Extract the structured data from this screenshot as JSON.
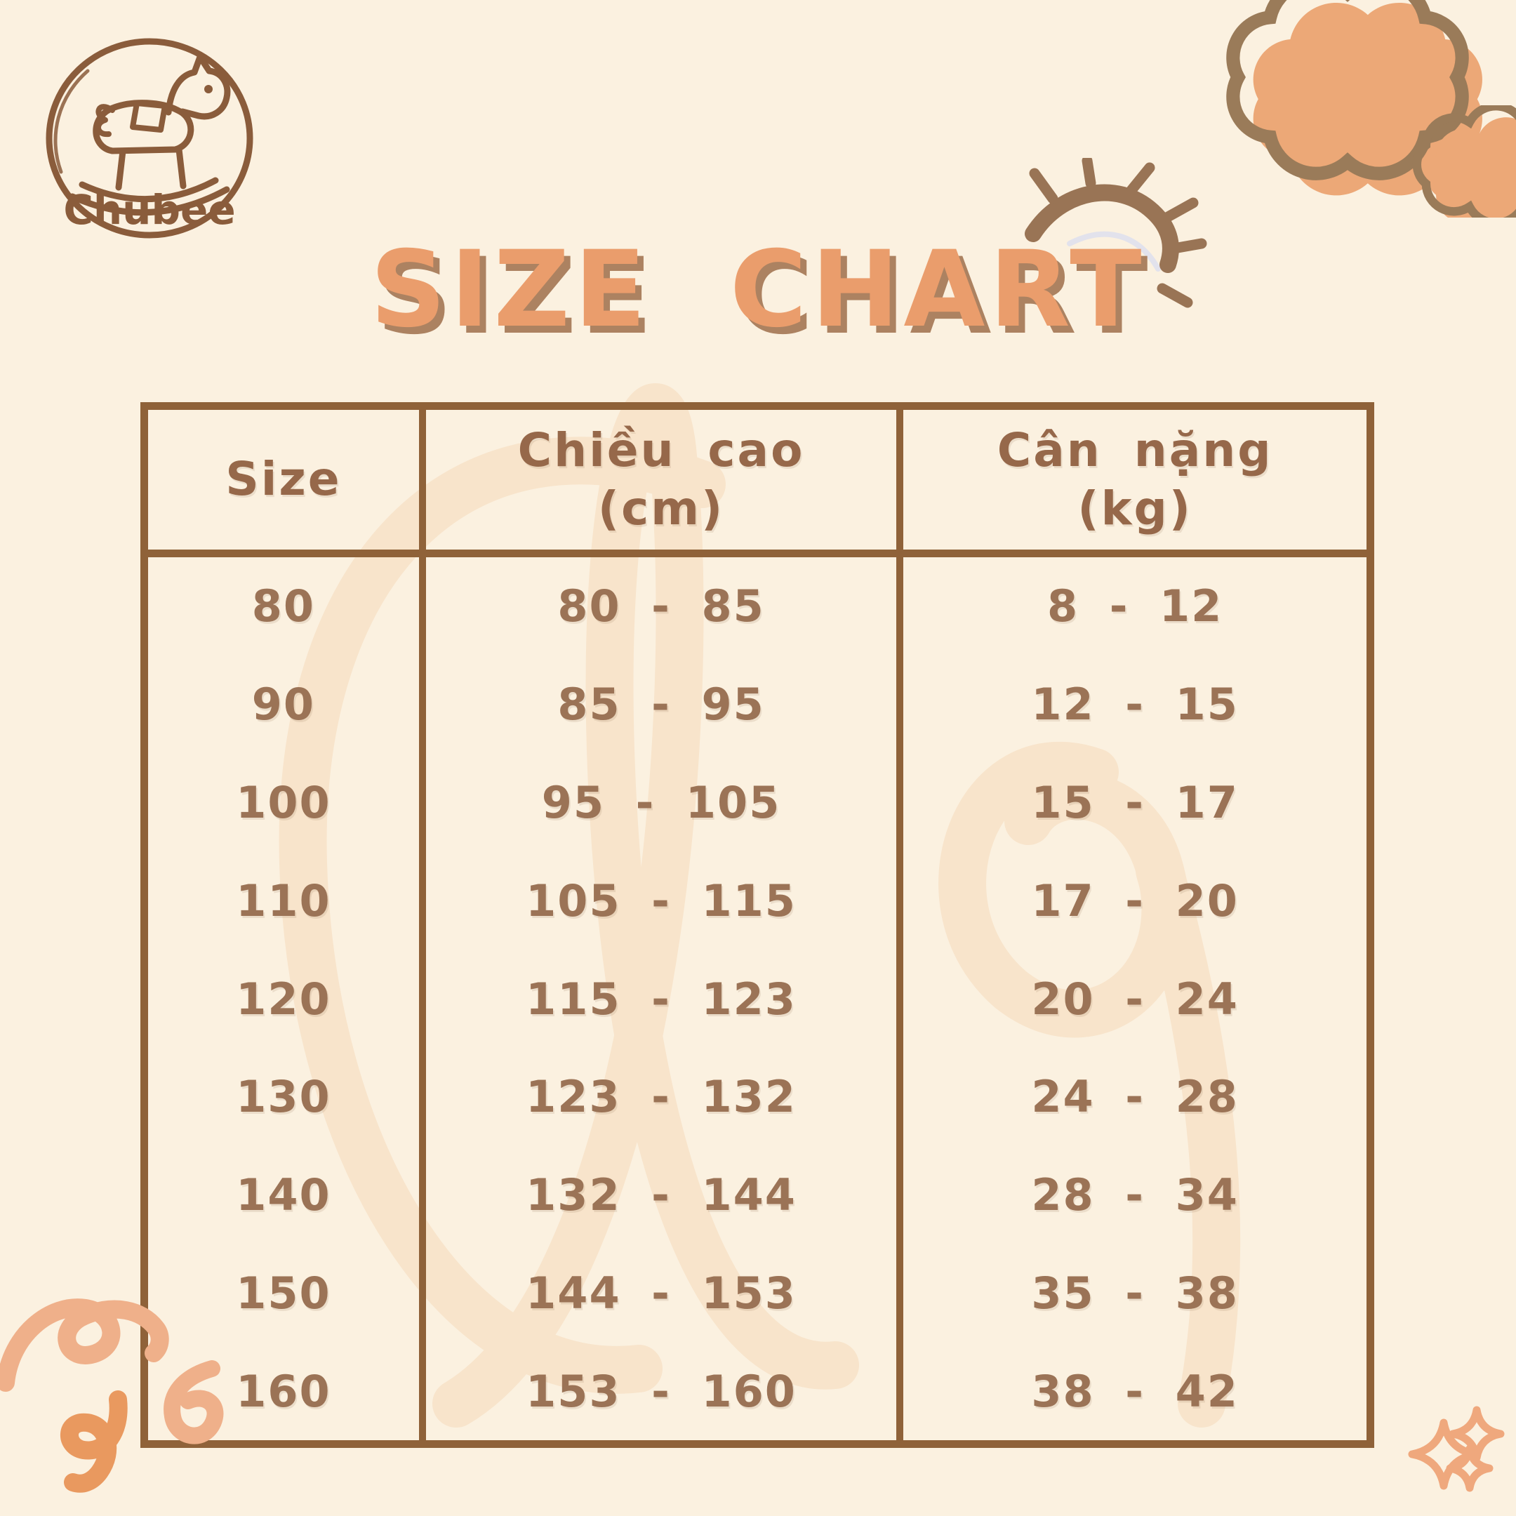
{
  "brand": {
    "name": "Chubee"
  },
  "title": "SIZE CHART",
  "table": {
    "headers": {
      "size": "Size",
      "height_line1": "Chiều cao",
      "height_line2": "(cm)",
      "weight_line1": "Cân nặng",
      "weight_line2": "(kg)"
    },
    "rows": [
      {
        "size": "80",
        "height": "80 - 85",
        "weight": "8 - 12"
      },
      {
        "size": "90",
        "height": "85 - 95",
        "weight": "12 - 15"
      },
      {
        "size": "100",
        "height": "95 - 105",
        "weight": "15 - 17"
      },
      {
        "size": "110",
        "height": "105 - 115",
        "weight": "17 - 20"
      },
      {
        "size": "120",
        "height": "115 - 123",
        "weight": "20 - 24"
      },
      {
        "size": "130",
        "height": "123 - 132",
        "weight": "24 - 28"
      },
      {
        "size": "140",
        "height": "132 - 144",
        "weight": "28 - 34"
      },
      {
        "size": "150",
        "height": "144 - 153",
        "weight": "35 - 38"
      },
      {
        "size": "160",
        "height": "153 - 160",
        "weight": "38 - 42"
      }
    ]
  },
  "icons": {
    "logo": "rocking-horse-icon",
    "decorations": [
      "cloud-icon",
      "sun-icon",
      "squiggle-icon",
      "sparkle-icon"
    ]
  },
  "colors": {
    "background": "#FBF1E0",
    "table_border": "#8F6239",
    "text_brown": "#9B7356",
    "header_brown": "#96684A",
    "title_orange": "#EA9D6C",
    "title_shadow": "#AC8261",
    "cloud_fill": "#ECA877",
    "cloud_outline": "#9A7B59",
    "doodle_salmon": "#EFB08A",
    "doodle_orange": "#E9995F",
    "sparkle": "#EFA87D",
    "watermark": "#F8E4CB",
    "logo_brown": "#8A5C3B"
  },
  "chart_data": {
    "type": "table",
    "title": "SIZE CHART",
    "columns": [
      "Size",
      "Chiều cao (cm)",
      "Cân nặng (kg)"
    ],
    "rows": [
      [
        "80",
        "80 - 85",
        "8 - 12"
      ],
      [
        "90",
        "85 - 95",
        "12 - 15"
      ],
      [
        "100",
        "95 - 105",
        "15 - 17"
      ],
      [
        "110",
        "105 - 115",
        "17 - 20"
      ],
      [
        "120",
        "115 - 123",
        "20 - 24"
      ],
      [
        "130",
        "123 - 132",
        "24 - 28"
      ],
      [
        "140",
        "132 - 144",
        "28 - 34"
      ],
      [
        "150",
        "144 - 153",
        "35 - 38"
      ],
      [
        "160",
        "153 - 160",
        "38 - 42"
      ]
    ]
  }
}
